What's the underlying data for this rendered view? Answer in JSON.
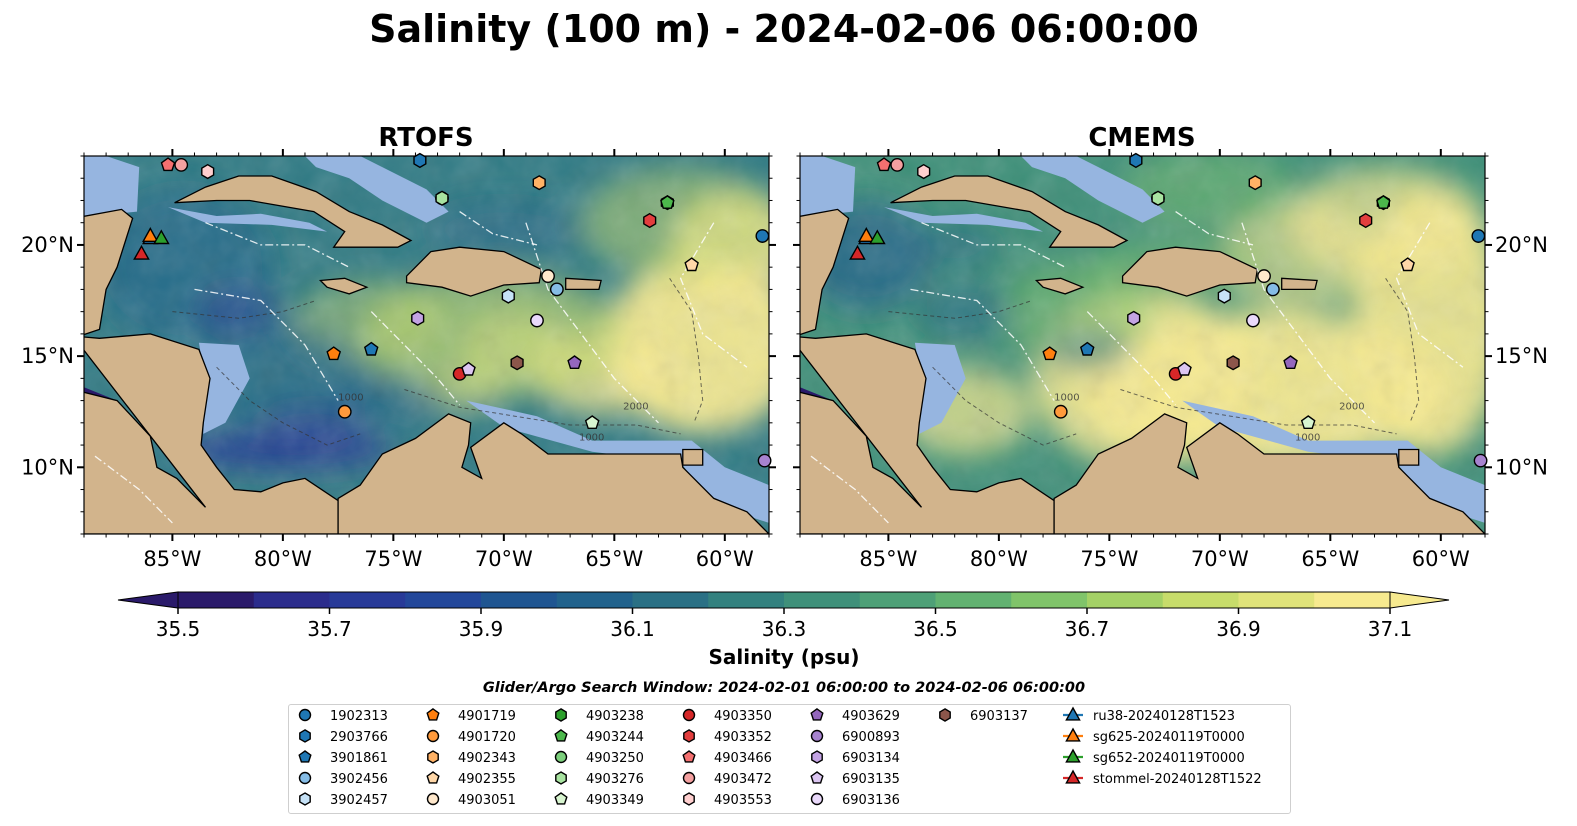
{
  "figure": {
    "title": "Salinity (100 m) - 2024-02-06 06:00:00",
    "colorbar_label": "Salinity (psu)",
    "search_window": "Glider/Argo Search Window: 2024-02-01 06:00:00 to 2024-02-06 06:00:00"
  },
  "chart_data": [
    {
      "type": "heatmap",
      "title": "RTOFS",
      "xlim": [
        -89,
        -58
      ],
      "ylim": [
        7,
        24
      ],
      "x_ticks": [
        "85°W",
        "80°W",
        "75°W",
        "70°W",
        "65°W",
        "60°W"
      ],
      "x_tick_values": [
        -85,
        -80,
        -75,
        -70,
        -65,
        -60
      ],
      "y_ticks": [
        "10°N",
        "15°N",
        "20°N"
      ],
      "y_tick_values": [
        10,
        15,
        20
      ],
      "y_tick_side": "left",
      "contour_labels": [
        "1000",
        "2000",
        "1000"
      ],
      "dominant_range": [
        35.6,
        37.1
      ]
    },
    {
      "type": "heatmap",
      "title": "CMEMS",
      "xlim": [
        -89,
        -58
      ],
      "ylim": [
        7,
        24
      ],
      "x_ticks": [
        "85°W",
        "80°W",
        "75°W",
        "70°W",
        "65°W",
        "60°W"
      ],
      "x_tick_values": [
        -85,
        -80,
        -75,
        -70,
        -65,
        -60
      ],
      "y_ticks": [
        "10°N",
        "15°N",
        "20°N"
      ],
      "y_tick_values": [
        10,
        15,
        20
      ],
      "y_tick_side": "right",
      "contour_labels": [
        "1000",
        "2000",
        "1000"
      ],
      "dominant_range": [
        35.9,
        37.1
      ]
    }
  ],
  "colorbar": {
    "ticks": [
      "35.5",
      "35.7",
      "35.9",
      "36.1",
      "36.3",
      "36.5",
      "36.7",
      "36.9",
      "37.1"
    ],
    "tick_values": [
      35.5,
      35.7,
      35.9,
      36.1,
      36.3,
      36.5,
      36.7,
      36.9,
      37.1
    ],
    "range": [
      35.4,
      37.2
    ],
    "colors": [
      "#2a1a6a",
      "#2b2c8c",
      "#283a98",
      "#23479a",
      "#1f5591",
      "#21628c",
      "#2a7085",
      "#33817f",
      "#3f907a",
      "#4ea077",
      "#62b271",
      "#80c46a",
      "#a4d166",
      "#c7dc6b",
      "#e0e37a",
      "#f7ea8f"
    ],
    "extend": "both"
  },
  "colors": {
    "land": "#d2b48c",
    "shelf": "#96b5e0",
    "deep_low": "#2a1a6a",
    "mid": "#2f8080",
    "high": "#f7ea8f"
  },
  "markers": [
    {
      "label": "1902313",
      "lon": -58.3,
      "lat": 20.4,
      "shape": "circle",
      "color": "#1f77b4"
    },
    {
      "label": "2903766",
      "lon": -73.8,
      "lat": 23.8,
      "shape": "hexagon",
      "color": "#1f77b4"
    },
    {
      "label": "3901861",
      "lon": -76.0,
      "lat": 15.3,
      "shape": "pentagon",
      "color": "#1f77b4"
    },
    {
      "label": "3902456",
      "lon": -67.6,
      "lat": 18.0,
      "shape": "circle",
      "color": "#85bce6"
    },
    {
      "label": "3902457",
      "lon": -69.8,
      "lat": 17.7,
      "shape": "hexagon",
      "color": "#c6e2f7"
    },
    {
      "label": "4901719",
      "lon": -77.7,
      "lat": 15.1,
      "shape": "pentagon",
      "color": "#ff7f0e"
    },
    {
      "label": "4901720",
      "lon": -77.2,
      "lat": 12.5,
      "shape": "circle",
      "color": "#ff9a3c"
    },
    {
      "label": "4902343",
      "lon": -68.4,
      "lat": 22.8,
      "shape": "hexagon",
      "color": "#ffb266"
    },
    {
      "label": "4902355",
      "lon": -61.5,
      "lat": 19.1,
      "shape": "pentagon",
      "color": "#ffd7a8"
    },
    {
      "label": "4903051",
      "lon": -68.0,
      "lat": 18.6,
      "shape": "circle",
      "color": "#ffe8cc"
    },
    {
      "label": "4903238",
      "lon": -62.6,
      "lat": 21.9,
      "shape": "hexagon",
      "color": "#2ca02c"
    },
    {
      "label": "4903244",
      "lon": -62.6,
      "lat": 21.9,
      "shape": "pentagon",
      "color": "#4cb84c"
    },
    {
      "label": "4903250",
      "lon": -72.8,
      "lat": 22.1,
      "shape": "circle",
      "color": "#7ccf7c"
    },
    {
      "label": "4903276",
      "lon": -72.8,
      "lat": 22.1,
      "shape": "hexagon",
      "color": "#a8e3a0"
    },
    {
      "label": "4903349",
      "lon": -66.0,
      "lat": 12.0,
      "shape": "pentagon",
      "color": "#d8f5d0"
    },
    {
      "label": "4903350",
      "lon": -72.0,
      "lat": 14.2,
      "shape": "circle",
      "color": "#d62728"
    },
    {
      "label": "4903352",
      "lon": -63.4,
      "lat": 21.1,
      "shape": "hexagon",
      "color": "#e33e3e"
    },
    {
      "label": "4903466",
      "lon": -85.2,
      "lat": 23.6,
      "shape": "pentagon",
      "color": "#f47070"
    },
    {
      "label": "4903472",
      "lon": -84.6,
      "lat": 23.6,
      "shape": "circle",
      "color": "#f4a0a0"
    },
    {
      "label": "4903553",
      "lon": -83.4,
      "lat": 23.3,
      "shape": "hexagon",
      "color": "#ffcfcf"
    },
    {
      "label": "4903629",
      "lon": -66.8,
      "lat": 14.7,
      "shape": "pentagon",
      "color": "#9467bd"
    },
    {
      "label": "6900893",
      "lon": -58.2,
      "lat": 10.3,
      "shape": "circle",
      "color": "#a783cf"
    },
    {
      "label": "6903134",
      "lon": -73.9,
      "lat": 16.7,
      "shape": "hexagon",
      "color": "#c3a3e3"
    },
    {
      "label": "6903135",
      "lon": -71.6,
      "lat": 14.4,
      "shape": "pentagon",
      "color": "#dcc6f2"
    },
    {
      "label": "6903136",
      "lon": -68.5,
      "lat": 16.6,
      "shape": "circle",
      "color": "#ead9fb"
    },
    {
      "label": "6903137",
      "lon": -69.4,
      "lat": 14.7,
      "shape": "hexagon",
      "color": "#8c564b"
    }
  ],
  "gliders": [
    {
      "label": "ru38-20240128T1523",
      "lon": -86.0,
      "lat": 20.3,
      "color": "#1f77b4"
    },
    {
      "label": "sg625-20240119T0000",
      "lon": -86.0,
      "lat": 20.4,
      "color": "#ff7f0e"
    },
    {
      "label": "sg652-20240119T0000",
      "lon": -85.5,
      "lat": 20.3,
      "color": "#2ca02c"
    },
    {
      "label": "stommel-20240128T1522",
      "lon": -86.4,
      "lat": 19.6,
      "color": "#d62728"
    }
  ]
}
